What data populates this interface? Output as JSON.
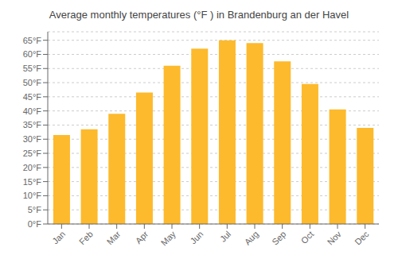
{
  "chart_data": {
    "type": "bar",
    "title": "Average monthly temperatures (°F ) in Brandenburg an der Havel",
    "categories": [
      "Jan",
      "Feb",
      "Mar",
      "Apr",
      "May",
      "Jun",
      "Jul",
      "Aug",
      "Sep",
      "Oct",
      "Nov",
      "Dec"
    ],
    "values": [
      31.5,
      33.5,
      39.0,
      46.5,
      56.0,
      62.0,
      65.0,
      64.0,
      57.5,
      49.5,
      40.5,
      34.0
    ],
    "color": "#FDBA2C",
    "ylim": [
      0,
      68
    ],
    "yticks": [
      {
        "value": 0,
        "label": "0°F"
      },
      {
        "value": 5,
        "label": "5°F"
      },
      {
        "value": 10,
        "label": "10°F"
      },
      {
        "value": 15,
        "label": "15°F"
      },
      {
        "value": 20,
        "label": "20°F"
      },
      {
        "value": 25,
        "label": "25°F"
      },
      {
        "value": 30,
        "label": "30°F"
      },
      {
        "value": 35,
        "label": "35°F"
      },
      {
        "value": 40,
        "label": "40°F"
      },
      {
        "value": 45,
        "label": "45°F"
      },
      {
        "value": 50,
        "label": "50°F"
      },
      {
        "value": 55,
        "label": "55°F"
      },
      {
        "value": 60,
        "label": "60°F"
      },
      {
        "value": 65,
        "label": "65°F"
      }
    ],
    "grid": true
  }
}
